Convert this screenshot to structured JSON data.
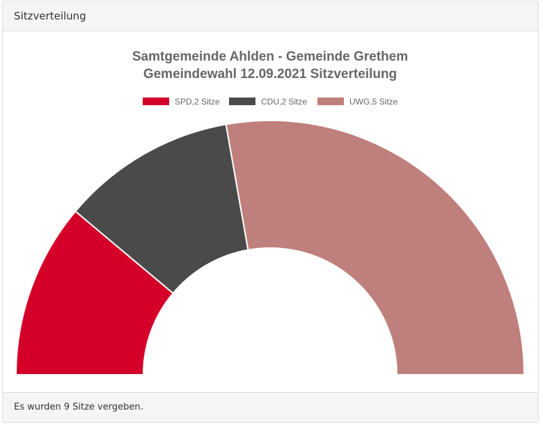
{
  "panel": {
    "title": "Sitzverteilung",
    "footer": "Es wurden 9 Sitze vergeben."
  },
  "chart_data": {
    "type": "pie",
    "subtype": "half-donut",
    "title": [
      "Samtgemeinde Ahlden - Gemeinde Grethem",
      "Gemeindewahl 12.09.2021 Sitzverteilung"
    ],
    "legend_position": "top",
    "total_seats": 9,
    "series": [
      {
        "name": "SPD",
        "value": 2,
        "label": "SPD,2 Sitze",
        "color": "#d50029"
      },
      {
        "name": "CDU",
        "value": 2,
        "label": "CDU,2 Sitze",
        "color": "#4a4a4a"
      },
      {
        "name": "UWG",
        "value": 5,
        "label": "UWG,5 Sitze",
        "color": "#bf7f7c"
      }
    ]
  }
}
